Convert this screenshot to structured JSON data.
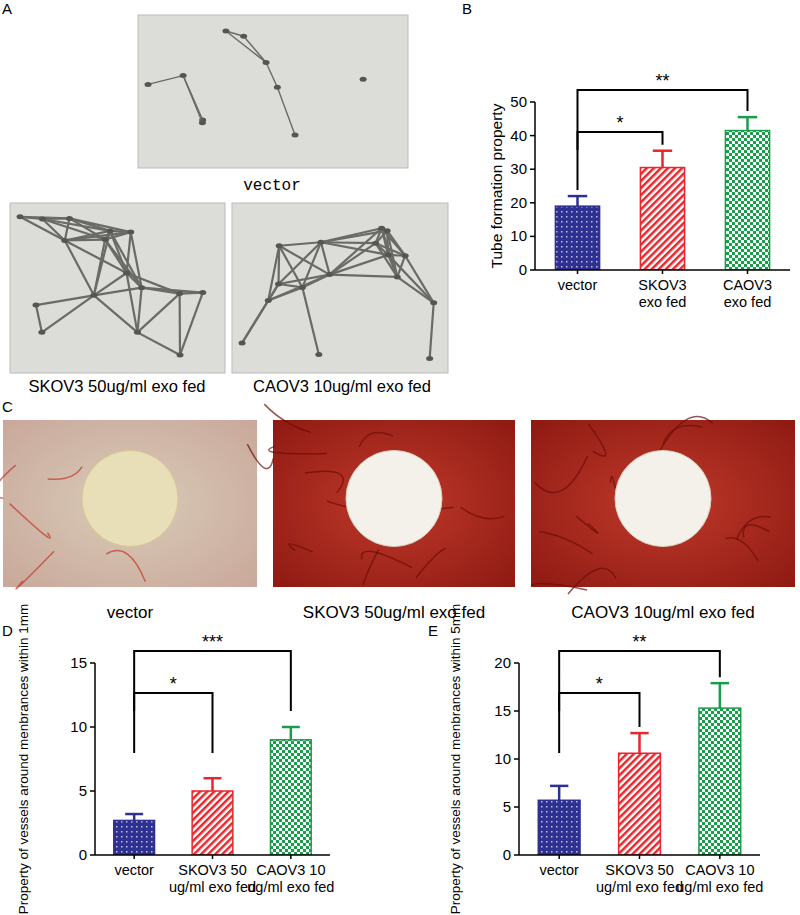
{
  "photo_panels": [
    {
      "label": "A",
      "captions": [
        "vector",
        "SKOV3 50ug/ml exo fed",
        "CAOV3 10ug/ml exo fed"
      ]
    },
    {
      "label": "C",
      "captions": [
        "vector",
        "SKOV3 50ug/ml exo fed",
        "CAOV3 10ug/ml exo fed"
      ]
    }
  ],
  "chart_data": [
    {
      "panel_label": "B",
      "type": "bar",
      "y_label": "Tube formation property",
      "categories": [
        "vector",
        "SKOV3\nexo fed",
        "CAOV3\nexo fed"
      ],
      "values": [
        19,
        30.5,
        41.5
      ],
      "errors": [
        3,
        5,
        4
      ],
      "colors": [
        "#2e3192",
        "#e8262b",
        "#1a9d4a"
      ],
      "ylim": [
        0,
        50
      ],
      "yticks": [
        0,
        10,
        20,
        30,
        40,
        50
      ],
      "annotations": [
        {
          "text": "*",
          "from": 0,
          "to": 1
        },
        {
          "text": "**",
          "from": 0,
          "to": 2
        }
      ]
    },
    {
      "panel_label": "D",
      "type": "bar",
      "y_label": "Property of vessels around menbrances within 1mm",
      "categories": [
        "vector",
        "SKOV3 50\nug/ml exo fed",
        "CAOV3 10\nug/ml exo fed"
      ],
      "values": [
        2.7,
        5.0,
        9.0
      ],
      "errors": [
        0.5,
        1.0,
        1.0
      ],
      "colors": [
        "#2e3192",
        "#e8262b",
        "#1a9d4a"
      ],
      "ylim": [
        0,
        15
      ],
      "yticks": [
        0,
        5,
        10,
        15
      ],
      "annotations": [
        {
          "text": "*",
          "from": 0,
          "to": 1
        },
        {
          "text": "***",
          "from": 0,
          "to": 2
        }
      ]
    },
    {
      "panel_label": "E",
      "type": "bar",
      "y_label": "Property of vessels around menbrances within 5mm",
      "categories": [
        "vector",
        "SKOV3 50\nug/ml exo fed",
        "CAOV3 10\nug/ml exo fed"
      ],
      "values": [
        5.7,
        10.6,
        15.3
      ],
      "errors": [
        1.5,
        2.1,
        2.6
      ],
      "colors": [
        "#2e3192",
        "#e8262b",
        "#1a9d4a"
      ],
      "ylim": [
        0,
        20
      ],
      "yticks": [
        0,
        5,
        10,
        15,
        20
      ],
      "annotations": [
        {
          "text": "*",
          "from": 0,
          "to": 1
        },
        {
          "text": "**",
          "from": 0,
          "to": 2
        }
      ]
    }
  ]
}
